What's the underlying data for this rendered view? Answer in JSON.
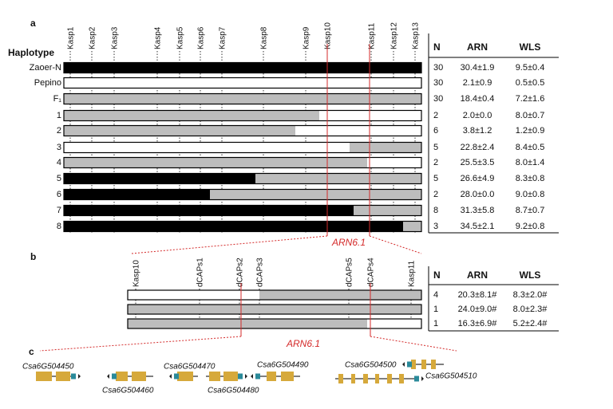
{
  "panel_a": {
    "label": "a",
    "row_header": "Haplotype",
    "markers": [
      "Kasp1",
      "Kasp2",
      "Kasp3",
      "Kasp4",
      "Kasp5",
      "Kasp6",
      "Kasp7",
      "Kasp8",
      "Kasp9",
      "Kasp10",
      "Kasp11",
      "Kasp12",
      "Kasp13"
    ],
    "rows": [
      "Zaoer-N",
      "Pepino",
      "F₁",
      "1",
      "2",
      "3",
      "4",
      "5",
      "6",
      "7",
      "8"
    ],
    "qtl_label": "ARN6.1",
    "table": {
      "columns": [
        "N",
        "ARN",
        "WLS"
      ],
      "rows": [
        [
          "30",
          "30.4±1.9",
          "9.5±0.4"
        ],
        [
          "30",
          "2.1±0.9",
          "0.5±0.5"
        ],
        [
          "30",
          "18.4±0.4",
          "7.2±1.6"
        ],
        [
          "2",
          "2.0±0.0",
          "8.0±0.7"
        ],
        [
          "6",
          "3.8±1.2",
          "1.2±0.9"
        ],
        [
          "5",
          "22.8±2.4",
          "8.4±0.5"
        ],
        [
          "2",
          "25.5±3.5",
          "8.0±1.4"
        ],
        [
          "5",
          "26.6±4.9",
          "8.3±0.8"
        ],
        [
          "2",
          "28.0±0.0",
          "9.0±0.8"
        ],
        [
          "8",
          "31.3±5.8",
          "8.7±0.7"
        ],
        [
          "3",
          "34.5±2.1",
          "9.2±0.8"
        ]
      ]
    }
  },
  "panel_b": {
    "label": "b",
    "markers": [
      "Kasp10",
      "dCAPs1",
      "dCAPs2",
      "dCAPs3",
      "dCAPs5",
      "dCAPs4",
      "Kasp11"
    ],
    "qtl_label": "ARN6.1",
    "table": {
      "columns": [
        "N",
        "ARN",
        "WLS"
      ],
      "rows": [
        [
          "4",
          "20.3±8.1#",
          "8.3±2.0#"
        ],
        [
          "1",
          "24.0±9.0#",
          "8.0±2.3#"
        ],
        [
          "1",
          "16.3±6.9#",
          "5.2±2.4#"
        ]
      ]
    }
  },
  "panel_c": {
    "label": "c",
    "genes": [
      "Csa6G504450",
      "Csa6G504460",
      "Csa6G504470",
      "Csa6G504480",
      "Csa6G504490",
      "Csa6G504500",
      "Csa6G504510"
    ]
  }
}
